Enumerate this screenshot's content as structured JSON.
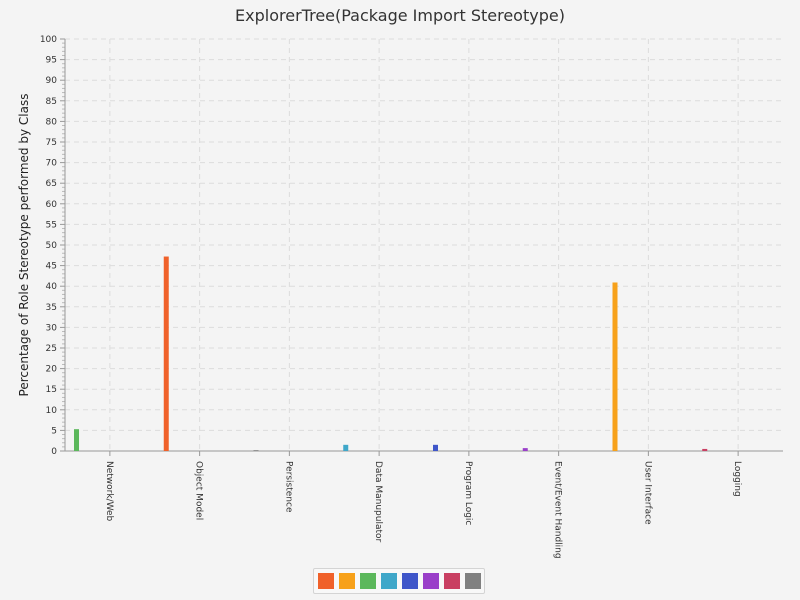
{
  "chart_data": {
    "type": "bar",
    "title": "ExplorerTree(Package Import Stereotype)",
    "xlabel": "",
    "ylabel": "Percentage of Role Stereotype performed by Class",
    "ylim": [
      0,
      100
    ],
    "ytick_step": 5,
    "grid": true,
    "categories": [
      "Network/Web",
      "Object Model",
      "Persistence",
      "Data Manupulator",
      "Program Logic",
      "Event/Event Handling",
      "User Interface",
      "Logging"
    ],
    "series": [
      {
        "color": "#f0612a",
        "values": [
          0,
          47.2,
          0,
          0,
          0,
          0,
          0,
          0
        ]
      },
      {
        "color": "#f7a11a",
        "values": [
          0,
          0,
          0,
          0,
          0,
          0,
          40.9,
          0
        ]
      },
      {
        "color": "#5cb85c",
        "values": [
          5.3,
          0,
          0,
          0,
          0,
          0,
          0,
          0
        ]
      },
      {
        "color": "#3fa7c9",
        "values": [
          0,
          0,
          0,
          1.5,
          0,
          0,
          0,
          0
        ]
      },
      {
        "color": "#3f56c9",
        "values": [
          0,
          0,
          0,
          0,
          1.5,
          0,
          0,
          0
        ]
      },
      {
        "color": "#9a3fc9",
        "values": [
          0,
          0,
          0,
          0,
          0,
          0.7,
          0,
          0
        ]
      },
      {
        "color": "#c93f62",
        "values": [
          0,
          0,
          0,
          0,
          0,
          0,
          0,
          0.5
        ]
      },
      {
        "color": "#808080",
        "values": [
          0,
          0,
          0.2,
          0,
          0,
          0,
          0,
          0
        ]
      }
    ],
    "legend_placement": "bottom-center",
    "legend_colors": [
      "#f0612a",
      "#f7a11a",
      "#5cb85c",
      "#3fa7c9",
      "#3f56c9",
      "#9a3fc9",
      "#c93f62",
      "#808080"
    ]
  }
}
